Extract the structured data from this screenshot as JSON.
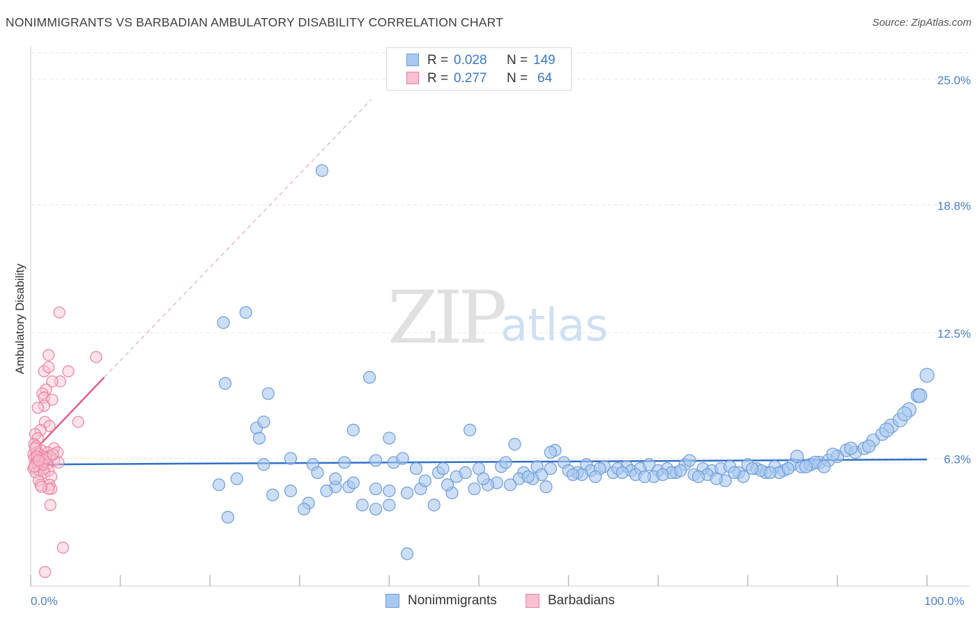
{
  "header": {
    "title": "NONIMMIGRANTS VS BARBADIAN AMBULATORY DISABILITY CORRELATION CHART",
    "source": "Source: ZipAtlas.com"
  },
  "watermark": {
    "zip": "ZIP",
    "atlas": "atlas"
  },
  "legend": {
    "rows": [
      {
        "r_label": "R =",
        "r_value": "0.028",
        "n_label": "N =",
        "n_value": "149"
      },
      {
        "r_label": "R =",
        "r_value": "0.277",
        "n_label": "N =",
        "n_value": "64"
      }
    ]
  },
  "bottom_legend": {
    "items": [
      {
        "label": "Nonimmigrants"
      },
      {
        "label": "Barbadians"
      }
    ]
  },
  "colors": {
    "blue_fill": "#a9c8f0",
    "blue_stroke": "#6d9bd8",
    "blue_line": "#2f6fc6",
    "pink_fill": "#f9c0d1",
    "pink_stroke": "#e9809f",
    "pink_line": "#e05f8a",
    "tick_text": "#4a7fc9",
    "grid": "#e6e6e6"
  },
  "chart_data": {
    "type": "scatter",
    "title": "NONIMMIGRANTS VS BARBADIAN AMBULATORY DISABILITY CORRELATION CHART",
    "xlabel": "",
    "ylabel": "Ambulatory Disability",
    "xlim": [
      0,
      100
    ],
    "ylim": [
      0,
      26.3
    ],
    "x_tick_labels": [
      "0.0%",
      "100.0%"
    ],
    "y_ticks": [
      6.3,
      12.5,
      18.8,
      25.0
    ],
    "y_tick_labels": [
      "6.3%",
      "12.5%",
      "18.8%",
      "25.0%"
    ],
    "grid": true,
    "series": [
      {
        "name": "Nonimmigrants",
        "r": 0.028,
        "n": 149,
        "trend": {
          "x": [
            0,
            100
          ],
          "y": [
            6.0,
            6.25
          ]
        },
        "points": [
          [
            32.5,
            20.5
          ],
          [
            21.5,
            13.0
          ],
          [
            24.0,
            13.5
          ],
          [
            21.7,
            10.0
          ],
          [
            37.8,
            10.3
          ],
          [
            26.5,
            9.5
          ],
          [
            25.2,
            7.8
          ],
          [
            26.0,
            8.1
          ],
          [
            25.5,
            7.3
          ],
          [
            36.0,
            7.7
          ],
          [
            40.0,
            7.3
          ],
          [
            49.0,
            7.7
          ],
          [
            54.0,
            7.0
          ],
          [
            58.5,
            6.7
          ],
          [
            26.0,
            6.0
          ],
          [
            29.0,
            6.3
          ],
          [
            31.5,
            6.0
          ],
          [
            35.0,
            6.1
          ],
          [
            38.5,
            6.2
          ],
          [
            40.5,
            6.1
          ],
          [
            41.5,
            6.3
          ],
          [
            43.0,
            5.8
          ],
          [
            45.5,
            5.6
          ],
          [
            46.0,
            5.8
          ],
          [
            47.5,
            5.4
          ],
          [
            50.0,
            5.8
          ],
          [
            52.5,
            5.9
          ],
          [
            53.0,
            6.1
          ],
          [
            55.0,
            5.6
          ],
          [
            56.5,
            5.9
          ],
          [
            57.0,
            5.5
          ],
          [
            58.0,
            5.8
          ],
          [
            59.5,
            6.1
          ],
          [
            61.0,
            5.6
          ],
          [
            62.0,
            6.0
          ],
          [
            62.5,
            5.7
          ],
          [
            64.0,
            5.9
          ],
          [
            65.0,
            5.6
          ],
          [
            66.5,
            5.9
          ],
          [
            67.0,
            5.7
          ],
          [
            68.0,
            5.8
          ],
          [
            69.0,
            6.0
          ],
          [
            70.0,
            5.7
          ],
          [
            71.0,
            5.8
          ],
          [
            72.0,
            5.6
          ],
          [
            73.0,
            6.0
          ],
          [
            74.0,
            5.5
          ],
          [
            75.0,
            5.8
          ],
          [
            76.0,
            5.7
          ],
          [
            77.0,
            5.8
          ],
          [
            78.0,
            5.9
          ],
          [
            79.0,
            5.6
          ],
          [
            80.0,
            6.0
          ],
          [
            81.0,
            5.8
          ],
          [
            82.0,
            5.6
          ],
          [
            83.0,
            5.9
          ],
          [
            84.0,
            5.7
          ],
          [
            85.0,
            6.0
          ],
          [
            86.0,
            5.9
          ],
          [
            87.0,
            6.0
          ],
          [
            88.0,
            6.1
          ],
          [
            89.0,
            6.2
          ],
          [
            90.0,
            6.4
          ],
          [
            91.0,
            6.7
          ],
          [
            92.0,
            6.6
          ],
          [
            93.0,
            6.8
          ],
          [
            94.0,
            7.2
          ],
          [
            95.0,
            7.5
          ],
          [
            96.0,
            7.9
          ],
          [
            97.0,
            8.2
          ],
          [
            98.0,
            8.7
          ],
          [
            99.0,
            9.4
          ],
          [
            100.0,
            10.4
          ],
          [
            99.2,
            9.4
          ],
          [
            97.5,
            8.5
          ],
          [
            95.5,
            7.7
          ],
          [
            93.5,
            6.9
          ],
          [
            91.5,
            6.8
          ],
          [
            89.5,
            6.5
          ],
          [
            87.5,
            6.1
          ],
          [
            85.5,
            6.4
          ],
          [
            83.5,
            5.6
          ],
          [
            81.5,
            5.7
          ],
          [
            79.5,
            5.4
          ],
          [
            77.5,
            5.2
          ],
          [
            75.5,
            5.5
          ],
          [
            73.5,
            6.2
          ],
          [
            71.5,
            5.6
          ],
          [
            69.5,
            5.4
          ],
          [
            67.5,
            5.5
          ],
          [
            65.5,
            5.8
          ],
          [
            63.5,
            5.8
          ],
          [
            61.5,
            5.5
          ],
          [
            60.0,
            5.7
          ],
          [
            58.0,
            6.6
          ],
          [
            56.0,
            5.3
          ],
          [
            54.5,
            5.3
          ],
          [
            52.0,
            5.1
          ],
          [
            51.0,
            5.0
          ],
          [
            49.5,
            4.8
          ],
          [
            47.0,
            4.6
          ],
          [
            45.0,
            4.0
          ],
          [
            43.5,
            4.8
          ],
          [
            42.0,
            4.6
          ],
          [
            40.0,
            4.7
          ],
          [
            38.5,
            4.8
          ],
          [
            37.0,
            4.0
          ],
          [
            35.5,
            4.9
          ],
          [
            34.0,
            4.9
          ],
          [
            33.0,
            4.7
          ],
          [
            31.0,
            4.1
          ],
          [
            29.0,
            4.7
          ],
          [
            27.0,
            4.5
          ],
          [
            23.0,
            5.3
          ],
          [
            21.0,
            5.0
          ],
          [
            22.0,
            3.4
          ],
          [
            40.0,
            4.0
          ],
          [
            38.5,
            3.8
          ],
          [
            42.0,
            1.6
          ],
          [
            30.5,
            3.8
          ],
          [
            32.0,
            5.6
          ],
          [
            34.0,
            5.3
          ],
          [
            36.0,
            5.1
          ],
          [
            44.0,
            5.2
          ],
          [
            46.5,
            5.0
          ],
          [
            48.5,
            5.6
          ],
          [
            50.5,
            5.3
          ],
          [
            53.5,
            5.0
          ],
          [
            55.5,
            5.4
          ],
          [
            57.5,
            4.9
          ],
          [
            60.5,
            5.5
          ],
          [
            63.0,
            5.4
          ],
          [
            66.0,
            5.6
          ],
          [
            68.5,
            5.4
          ],
          [
            70.5,
            5.5
          ],
          [
            72.5,
            5.7
          ],
          [
            74.5,
            5.4
          ],
          [
            76.5,
            5.3
          ],
          [
            78.5,
            5.6
          ],
          [
            80.5,
            5.8
          ],
          [
            82.5,
            5.6
          ],
          [
            84.5,
            5.8
          ],
          [
            86.5,
            5.9
          ],
          [
            88.5,
            5.9
          ]
        ]
      },
      {
        "name": "Barbadians",
        "r": 0.277,
        "n": 64,
        "trend": {
          "x": [
            0,
            8.2
          ],
          "y": [
            6.5,
            10.3
          ],
          "extended": {
            "x": [
              8.2,
              38.0
            ],
            "y": [
              10.3,
              24.0
            ]
          }
        },
        "points": [
          [
            3.2,
            13.5
          ],
          [
            2.0,
            11.4
          ],
          [
            7.3,
            11.3
          ],
          [
            1.5,
            10.6
          ],
          [
            4.2,
            10.6
          ],
          [
            2.0,
            10.8
          ],
          [
            3.3,
            10.1
          ],
          [
            2.4,
            10.1
          ],
          [
            1.7,
            9.7
          ],
          [
            1.3,
            9.5
          ],
          [
            1.5,
            9.3
          ],
          [
            2.4,
            9.2
          ],
          [
            1.5,
            8.9
          ],
          [
            0.8,
            8.8
          ],
          [
            5.3,
            8.1
          ],
          [
            1.6,
            8.1
          ],
          [
            2.1,
            7.9
          ],
          [
            1.1,
            7.7
          ],
          [
            0.5,
            7.5
          ],
          [
            0.8,
            7.3
          ],
          [
            0.4,
            7.0
          ],
          [
            0.6,
            6.9
          ],
          [
            2.6,
            6.8
          ],
          [
            1.2,
            6.7
          ],
          [
            0.7,
            6.6
          ],
          [
            1.9,
            6.6
          ],
          [
            3.0,
            6.6
          ],
          [
            0.3,
            6.5
          ],
          [
            0.9,
            6.5
          ],
          [
            1.6,
            6.4
          ],
          [
            2.2,
            6.4
          ],
          [
            0.4,
            6.3
          ],
          [
            1.0,
            6.3
          ],
          [
            1.4,
            6.2
          ],
          [
            2.6,
            6.2
          ],
          [
            0.6,
            6.1
          ],
          [
            1.2,
            6.1
          ],
          [
            3.1,
            6.1
          ],
          [
            0.5,
            6.0
          ],
          [
            1.8,
            6.0
          ],
          [
            0.8,
            5.9
          ],
          [
            1.4,
            5.8
          ],
          [
            0.3,
            5.8
          ],
          [
            1.0,
            5.7
          ],
          [
            2.0,
            5.7
          ],
          [
            0.6,
            5.6
          ],
          [
            1.5,
            5.6
          ],
          [
            2.3,
            5.4
          ],
          [
            0.9,
            5.2
          ],
          [
            2.1,
            5.0
          ],
          [
            1.1,
            5.0
          ],
          [
            2.3,
            4.8
          ],
          [
            2.0,
            4.8
          ],
          [
            1.2,
            4.9
          ],
          [
            2.2,
            4.0
          ],
          [
            0.5,
            6.8
          ],
          [
            0.7,
            6.4
          ],
          [
            1.3,
            6.0
          ],
          [
            0.4,
            5.9
          ],
          [
            1.7,
            6.3
          ],
          [
            3.6,
            1.9
          ],
          [
            1.6,
            0.7
          ],
          [
            0.9,
            6.2
          ],
          [
            2.5,
            6.5
          ]
        ]
      }
    ]
  }
}
